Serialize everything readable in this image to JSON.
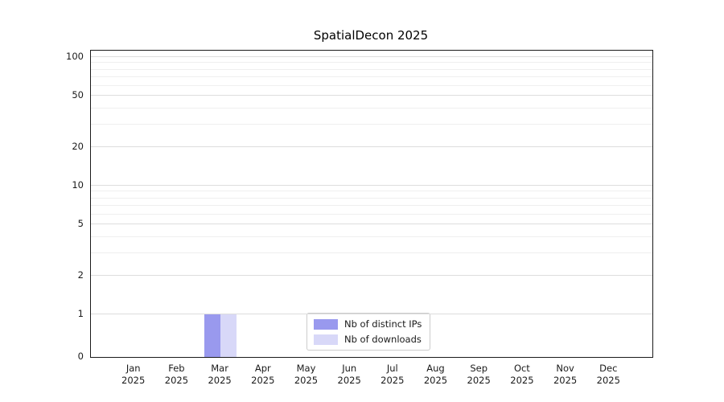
{
  "chart_data": {
    "type": "bar",
    "title": "SpatialDecon 2025",
    "categories": [
      "Jan",
      "Feb",
      "Mar",
      "Apr",
      "May",
      "Jun",
      "Jul",
      "Aug",
      "Sep",
      "Oct",
      "Nov",
      "Dec"
    ],
    "year_label": "2025",
    "series": [
      {
        "name": "Nb of distinct IPs",
        "color": "#9999ee",
        "values": [
          0,
          0,
          1,
          0,
          0,
          0,
          0,
          0,
          0,
          0,
          0,
          0
        ]
      },
      {
        "name": "Nb of downloads",
        "color": "#d8d8f8",
        "values": [
          0,
          0,
          1,
          0,
          0,
          0,
          0,
          0,
          0,
          0,
          0,
          0
        ]
      }
    ],
    "yticks": [
      0,
      1,
      2,
      5,
      10,
      20,
      50,
      100
    ],
    "ylim": [
      0,
      100
    ],
    "yscale": "log",
    "xlabel": "",
    "ylabel": "",
    "grid": true,
    "legend_position": "lower center"
  }
}
